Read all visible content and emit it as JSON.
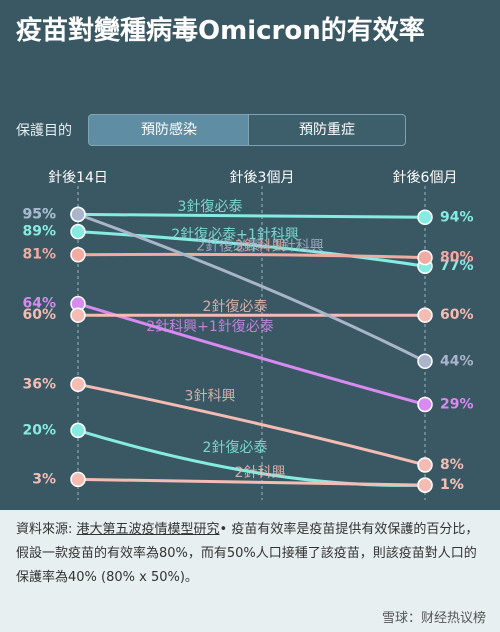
{
  "header": {
    "title": "疫苗對變種病毒Omicron的有效率",
    "purpose_label": "保護目的",
    "tabs": [
      "預防感染",
      "預防重症"
    ]
  },
  "chart_data": {
    "type": "line",
    "categories": [
      "針後14日",
      "針後3個月",
      "針後6個月"
    ],
    "ylim": [
      0,
      100
    ],
    "series": [
      {
        "name": "3針復必泰",
        "color": "#86ece2",
        "values": [
          95,
          94.5,
          94
        ],
        "value_labels": [
          "95%",
          null,
          "94%"
        ]
      },
      {
        "name": "2針復必泰+1針科興",
        "color": "#86ece2",
        "values": [
          89,
          84,
          77
        ],
        "value_labels": [
          "89%",
          null,
          "77%"
        ]
      },
      {
        "name": "3針科興",
        "color": "#f2aba2",
        "values": [
          81,
          81,
          80
        ],
        "value_labels": [
          "81%",
          null,
          "80%"
        ]
      },
      {
        "name": "2針科興+1針復必泰",
        "color": "#d98af0",
        "values": [
          64,
          45,
          29
        ],
        "value_labels": [
          "64%",
          null,
          "29%"
        ]
      },
      {
        "name": "2針復必泰",
        "color": "#f4bcb2",
        "values": [
          60,
          60,
          60
        ],
        "value_labels": [
          "60%",
          null,
          "60%"
        ]
      },
      {
        "name": "2針復必泰+1針科興",
        "color": "#a9b5ca",
        "values": [
          95,
          70,
          44
        ],
        "value_labels": [
          "95%",
          null,
          "44%"
        ]
      },
      {
        "name": "3針科興",
        "color": "#f4bcb2",
        "values": [
          36,
          22,
          8
        ],
        "value_labels": [
          "36%",
          null,
          "8%"
        ]
      },
      {
        "name": "2針復必泰",
        "color": "#86ece2",
        "values": [
          20,
          5,
          1
        ],
        "value_labels": [
          "20%",
          null,
          "1%"
        ]
      },
      {
        "name": "2針科興",
        "color": "#f4bcb2",
        "values": [
          3,
          2,
          1
        ],
        "value_labels": [
          "3%",
          null,
          "1%"
        ]
      }
    ]
  },
  "footer": {
    "source_label": "資料來源:",
    "source_link": "港大第五波疫情模型研究",
    "note": "• 疫苗有效率是疫苗提供有效保護的百分比，假設一款疫苗的有效率為80%，而有50%人口接種了該疫苗，則該疫苗對人口的保護率為40% (80% x 50%)。",
    "watermark": "雪球：财经热议榜"
  }
}
